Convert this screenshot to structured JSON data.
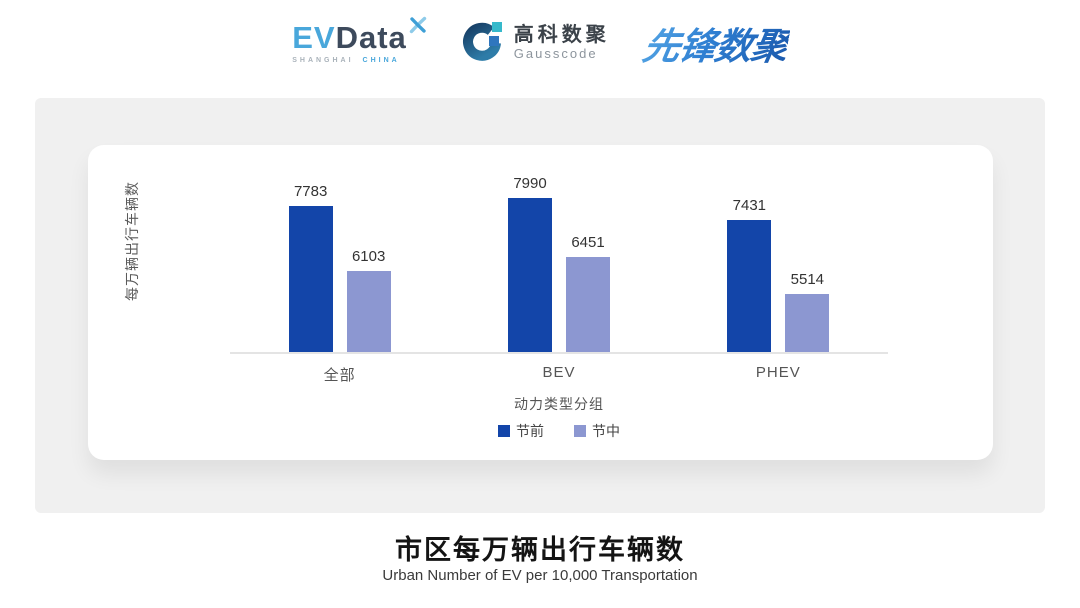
{
  "header": {
    "logos": {
      "evdata": {
        "ev": "EV",
        "data": "Data",
        "sub_left": "SHANGHAI",
        "sub_right": "CHINA",
        "accent_color": "#49A7DB",
        "dark_color": "#3D4A5C"
      },
      "gausscode": {
        "cn": "高科数聚",
        "en": "Gausscode"
      },
      "pioneer": {
        "text": "先锋数聚",
        "color": "#2878CC"
      }
    },
    "icons": {
      "evdata_mark": "x-sparkle-icon",
      "gausscode_mark": "g-ring-icon"
    }
  },
  "chart_data": {
    "type": "bar",
    "title": "",
    "categories": [
      "全部",
      "BEV",
      "PHEV"
    ],
    "series": [
      {
        "name": "节前",
        "color": "#1345A9",
        "values": [
          7783,
          7990,
          7431
        ]
      },
      {
        "name": "节中",
        "color": "#8C97D1",
        "values": [
          6103,
          6451,
          5514
        ]
      }
    ],
    "xlabel": "动力类型分组",
    "ylabel": "每万辆出行车辆数",
    "ylim": [
      4000,
      8200
    ],
    "grid": false,
    "legend_position": "bottom",
    "value_labels": true
  },
  "footer": {
    "title": "市区每万辆出行车辆数",
    "subtitle": "Urban Number of EV per 10,000 Transportation"
  }
}
